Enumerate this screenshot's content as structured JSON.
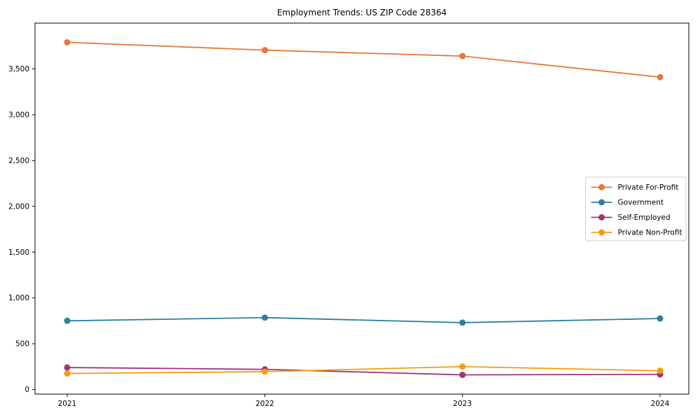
{
  "chart_data": {
    "type": "line",
    "title": "Employment Trends: US ZIP Code 28364",
    "x": [
      "2021",
      "2022",
      "2023",
      "2024"
    ],
    "series": [
      {
        "name": "Private For-Profit",
        "color": "#e4793a",
        "values": [
          3790,
          3705,
          3640,
          3410
        ]
      },
      {
        "name": "Government",
        "color": "#2e7f9e",
        "values": [
          750,
          785,
          730,
          775
        ]
      },
      {
        "name": "Self-Employed",
        "color": "#a03571",
        "values": [
          240,
          220,
          160,
          165
        ]
      },
      {
        "name": "Private Non-Profit",
        "color": "#f29c12",
        "values": [
          175,
          195,
          250,
          205
        ]
      }
    ],
    "xlabel": "",
    "ylabel": "",
    "ylim": [
      -50,
      4000
    ],
    "yticks": [
      0,
      500,
      1000,
      1500,
      2000,
      2500,
      3000,
      3500
    ],
    "ytick_labels": [
      "0",
      "500",
      "1,000",
      "1,500",
      "2,000",
      "2,500",
      "3,000",
      "3,500"
    ],
    "grid": false,
    "legend_position": "center right",
    "marker": "circle",
    "line_style": "solid",
    "axis_color": "#000000",
    "legend_border_color": "#cccccc",
    "background_color": "#ffffff"
  }
}
